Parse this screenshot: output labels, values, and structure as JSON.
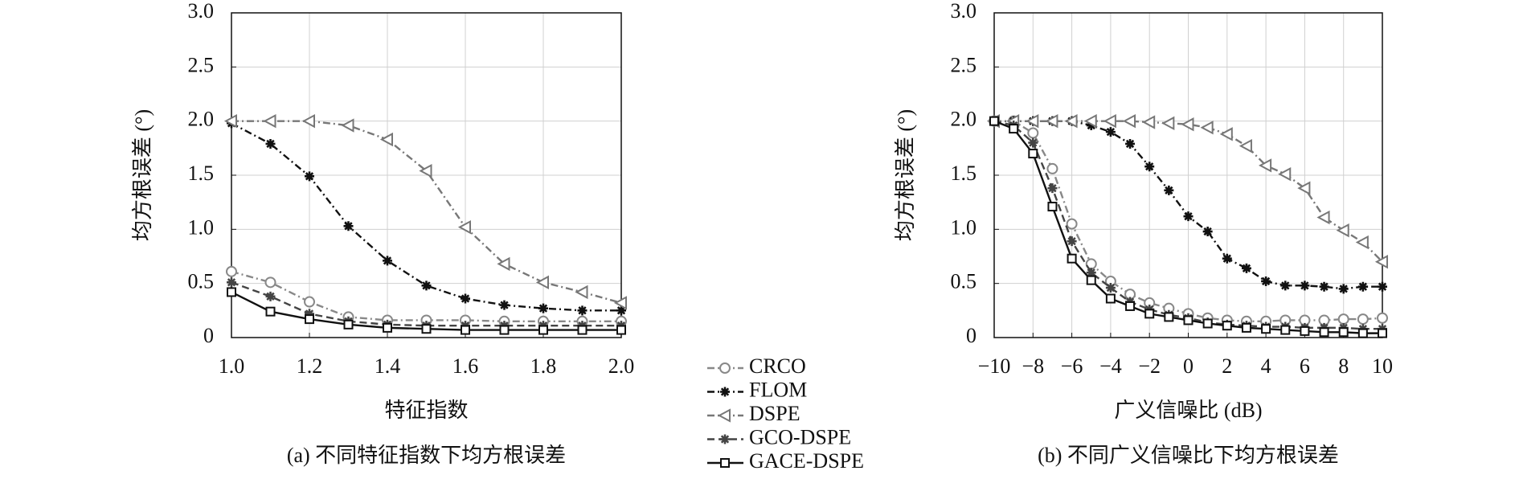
{
  "chart_data": [
    {
      "type": "line",
      "caption": "(a) 不同特征指数下均方根误差",
      "xlabel": "特征指数",
      "ylabel": "均方根误差 (°)",
      "x": [
        1.0,
        1.1,
        1.2,
        1.3,
        1.4,
        1.5,
        1.6,
        1.7,
        1.8,
        1.9,
        2.0
      ],
      "xlim": [
        1.0,
        2.0
      ],
      "xticks": [
        {
          "value": 1.0,
          "label": "1.0"
        },
        {
          "value": 1.2,
          "label": "1.2"
        },
        {
          "value": 1.4,
          "label": "1.4"
        },
        {
          "value": 1.6,
          "label": "1.6"
        },
        {
          "value": 1.8,
          "label": "1.8"
        },
        {
          "value": 2.0,
          "label": "2.0"
        }
      ],
      "ylim": [
        0,
        3
      ],
      "yticks": [
        0,
        {
          "value": 0.5,
          "label": "0.5"
        },
        {
          "value": 1,
          "label": "1.0"
        },
        {
          "value": 1.5,
          "label": "1.5"
        },
        {
          "value": 2,
          "label": "2.0"
        },
        {
          "value": 2.5,
          "label": "2.5"
        },
        {
          "value": 3,
          "label": "3.0"
        }
      ],
      "grid": true,
      "series": [
        {
          "name": "CRCO",
          "color": "#888888",
          "marker": "circle",
          "dash": "dashdot",
          "values": [
            0.61,
            0.51,
            0.33,
            0.19,
            0.16,
            0.16,
            0.16,
            0.15,
            0.15,
            0.15,
            0.15
          ]
        },
        {
          "name": "FLOM",
          "color": "#111111",
          "marker": "star",
          "dash": "dashdot",
          "values": [
            1.98,
            1.79,
            1.49,
            1.03,
            0.71,
            0.48,
            0.36,
            0.3,
            0.27,
            0.25,
            0.25
          ]
        },
        {
          "name": "DSPE",
          "color": "#777777",
          "marker": "triangle",
          "dash": "dashdot",
          "values": [
            2.0,
            2.0,
            2.0,
            1.96,
            1.83,
            1.54,
            1.02,
            0.68,
            0.51,
            0.42,
            0.32
          ]
        },
        {
          "name": "GCO-DSPE",
          "color": "#444444",
          "marker": "star",
          "dash": "dashed",
          "values": [
            0.51,
            0.38,
            0.22,
            0.15,
            0.12,
            0.11,
            0.11,
            0.11,
            0.11,
            0.11,
            0.11
          ]
        },
        {
          "name": "GACE-DSPE",
          "color": "#111111",
          "marker": "square",
          "dash": "solid",
          "values": [
            0.42,
            0.24,
            0.17,
            0.12,
            0.09,
            0.08,
            0.07,
            0.07,
            0.07,
            0.07,
            0.07
          ]
        }
      ]
    },
    {
      "type": "line",
      "caption": "(b) 不同广义信噪比下均方根误差",
      "xlabel": "广义信噪比 (dB)",
      "ylabel": "均方根误差 (°)",
      "x": [
        -10,
        -9,
        -8,
        -7,
        -6,
        -5,
        -4,
        -3,
        -2,
        -1,
        0,
        1,
        2,
        3,
        4,
        5,
        6,
        7,
        8,
        9,
        10
      ],
      "xlim": [
        -10,
        10
      ],
      "xticks": [
        {
          "value": -10,
          "label": "−10"
        },
        {
          "value": -8,
          "label": "−8"
        },
        {
          "value": -6,
          "label": "−6"
        },
        {
          "value": -4,
          "label": "−4"
        },
        {
          "value": -2,
          "label": "−2"
        },
        0,
        2,
        4,
        6,
        8,
        10
      ],
      "ylim": [
        0,
        3
      ],
      "yticks": [
        0,
        {
          "value": 0.5,
          "label": "0.5"
        },
        {
          "value": 1,
          "label": "1.0"
        },
        {
          "value": 1.5,
          "label": "1.5"
        },
        {
          "value": 2,
          "label": "2.0"
        },
        {
          "value": 2.5,
          "label": "2.5"
        },
        {
          "value": 3,
          "label": "3.0"
        }
      ],
      "grid": true,
      "series": [
        {
          "name": "CRCO",
          "color": "#888888",
          "marker": "circle",
          "dash": "dashdot",
          "values": [
            2.0,
            2.0,
            1.89,
            1.56,
            1.05,
            0.68,
            0.52,
            0.4,
            0.32,
            0.27,
            0.22,
            0.18,
            0.16,
            0.15,
            0.15,
            0.16,
            0.16,
            0.16,
            0.17,
            0.17,
            0.18
          ]
        },
        {
          "name": "FLOM",
          "color": "#111111",
          "marker": "star",
          "dash": "dashdot",
          "values": [
            2.0,
            2.0,
            2.0,
            2.0,
            2.0,
            1.96,
            1.9,
            1.79,
            1.58,
            1.36,
            1.12,
            0.98,
            0.73,
            0.64,
            0.52,
            0.48,
            0.48,
            0.47,
            0.45,
            0.47,
            0.47
          ]
        },
        {
          "name": "DSPE",
          "color": "#777777",
          "marker": "triangle",
          "dash": "dashdot",
          "values": [
            2.0,
            2.0,
            2.0,
            2.0,
            2.0,
            2.0,
            2.0,
            2.0,
            1.99,
            1.98,
            1.97,
            1.94,
            1.88,
            1.77,
            1.59,
            1.51,
            1.38,
            1.11,
            0.99,
            0.88,
            0.7
          ]
        },
        {
          "name": "GCO-DSPE",
          "color": "#444444",
          "marker": "star",
          "dash": "dashed",
          "values": [
            2.0,
            1.96,
            1.8,
            1.38,
            0.89,
            0.6,
            0.46,
            0.33,
            0.26,
            0.21,
            0.18,
            0.14,
            0.12,
            0.11,
            0.1,
            0.1,
            0.09,
            0.09,
            0.09,
            0.08,
            0.08
          ]
        },
        {
          "name": "GACE-DSPE",
          "color": "#111111",
          "marker": "square",
          "dash": "solid",
          "values": [
            2.0,
            1.93,
            1.7,
            1.21,
            0.73,
            0.53,
            0.36,
            0.29,
            0.22,
            0.19,
            0.16,
            0.13,
            0.11,
            0.09,
            0.08,
            0.07,
            0.06,
            0.05,
            0.05,
            0.04,
            0.04
          ]
        }
      ]
    }
  ]
}
